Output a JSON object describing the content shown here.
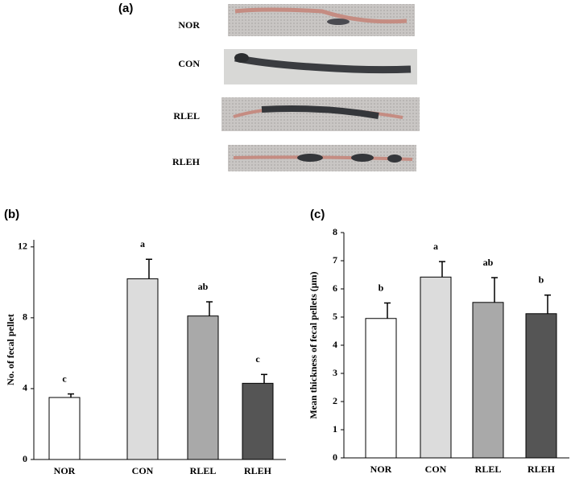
{
  "panel_a": {
    "label": "(a)",
    "rows": [
      "NOR",
      "CON",
      "RLEL",
      "RLEH"
    ]
  },
  "chart_data": [
    {
      "type": "bar",
      "panel": "(b)",
      "ylabel": "No. of fecal pellet",
      "categories": [
        "NOR",
        "CON",
        "RLEL",
        "RLEH"
      ],
      "values": [
        3.5,
        10.2,
        8.1,
        4.3
      ],
      "errors": [
        0.2,
        1.1,
        0.8,
        0.5
      ],
      "letters": [
        "c",
        "a",
        "ab",
        "c"
      ],
      "colors": [
        "#ffffff",
        "#dcdcdc",
        "#a9a9a9",
        "#555555"
      ],
      "ylim": [
        0,
        12.4
      ],
      "yticks": [
        0,
        4,
        8,
        12
      ]
    },
    {
      "type": "bar",
      "panel": "(c)",
      "ylabel": "Mean thickness of fecal pellets (μm)",
      "categories": [
        "NOR",
        "CON",
        "RLEL",
        "RLEH"
      ],
      "values": [
        4.95,
        6.42,
        5.52,
        5.12
      ],
      "errors": [
        0.55,
        0.55,
        0.88,
        0.66
      ],
      "letters": [
        "b",
        "a",
        "ab",
        "b"
      ],
      "colors": [
        "#ffffff",
        "#dcdcdc",
        "#a9a9a9",
        "#555555"
      ],
      "ylim": [
        0,
        8
      ],
      "yticks": [
        0,
        1,
        2,
        3,
        4,
        5,
        6,
        7,
        8
      ]
    }
  ]
}
